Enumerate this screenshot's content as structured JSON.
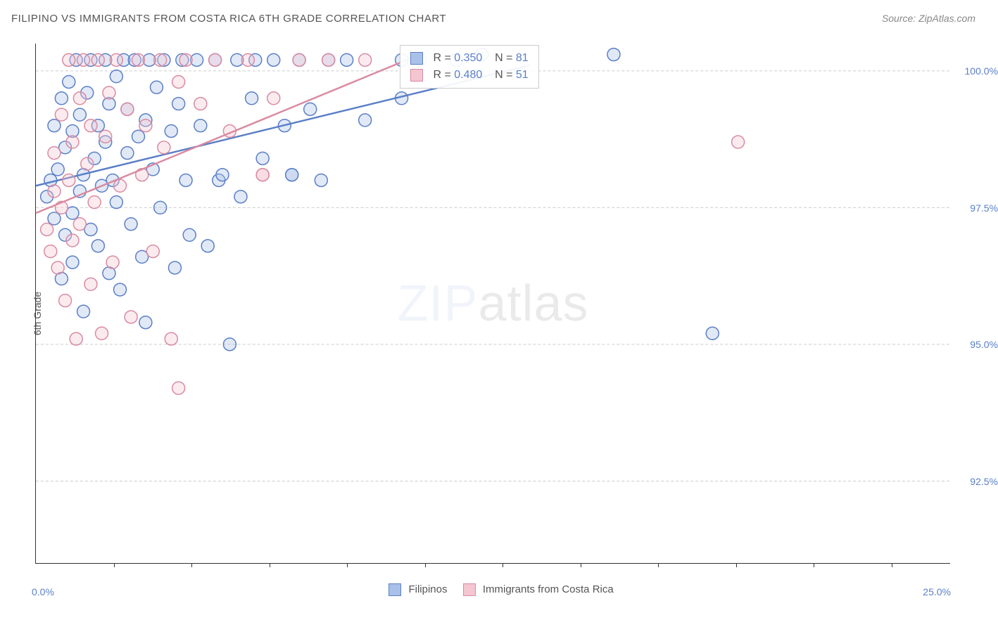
{
  "title": "FILIPINO VS IMMIGRANTS FROM COSTA RICA 6TH GRADE CORRELATION CHART",
  "source": "Source: ZipAtlas.com",
  "ylabel": "6th Grade",
  "watermark_a": "ZIP",
  "watermark_b": "atlas",
  "chart": {
    "type": "scatter",
    "background_color": "#ffffff",
    "grid_color": "#cccccc",
    "grid_dash": "4,3",
    "axis_color": "#333333",
    "xlim": [
      0.0,
      25.0
    ],
    "ylim": [
      91.0,
      100.5
    ],
    "xtick_labels": [
      "0.0%",
      "25.0%"
    ],
    "ytick_values": [
      92.5,
      95.0,
      97.5,
      100.0
    ],
    "ytick_labels": [
      "92.5%",
      "95.0%",
      "97.5%",
      "100.0%"
    ],
    "tick_marks_x_pct": [
      8.5,
      17,
      25.5,
      34,
      42.5,
      51,
      59.5,
      68,
      76.5,
      85,
      93.5
    ],
    "label_color": "#5b7fc7",
    "title_fontsize": 15,
    "label_fontsize": 14,
    "marker_radius": 9,
    "marker_stroke_width": 1.5,
    "marker_fill_opacity": 0.35,
    "line_width": 2.5
  },
  "series": [
    {
      "id": "filipinos",
      "label": "Filipinos",
      "color_stroke": "#5b7fc7",
      "color_fill": "#a9c1e8",
      "R": "0.350",
      "N": "81",
      "trend": {
        "x1": 0.0,
        "y1": 97.9,
        "x2": 13.5,
        "y2": 100.1
      },
      "points": [
        [
          0.3,
          97.7
        ],
        [
          0.4,
          98.0
        ],
        [
          0.5,
          97.3
        ],
        [
          0.5,
          99.0
        ],
        [
          0.6,
          98.2
        ],
        [
          0.7,
          96.2
        ],
        [
          0.7,
          99.5
        ],
        [
          0.8,
          97.0
        ],
        [
          0.8,
          98.6
        ],
        [
          0.9,
          99.8
        ],
        [
          1.0,
          97.4
        ],
        [
          1.0,
          98.9
        ],
        [
          1.0,
          96.5
        ],
        [
          1.1,
          100.2
        ],
        [
          1.2,
          97.8
        ],
        [
          1.2,
          99.2
        ],
        [
          1.3,
          98.1
        ],
        [
          1.3,
          95.6
        ],
        [
          1.4,
          99.6
        ],
        [
          1.5,
          97.1
        ],
        [
          1.5,
          100.2
        ],
        [
          1.6,
          98.4
        ],
        [
          1.7,
          96.8
        ],
        [
          1.7,
          99.0
        ],
        [
          1.8,
          97.9
        ],
        [
          1.9,
          100.2
        ],
        [
          1.9,
          98.7
        ],
        [
          2.0,
          99.4
        ],
        [
          2.0,
          96.3
        ],
        [
          2.1,
          98.0
        ],
        [
          2.2,
          99.9
        ],
        [
          2.2,
          97.6
        ],
        [
          2.3,
          96.0
        ],
        [
          2.4,
          100.2
        ],
        [
          2.5,
          98.5
        ],
        [
          2.5,
          99.3
        ],
        [
          2.6,
          97.2
        ],
        [
          2.7,
          100.2
        ],
        [
          2.8,
          98.8
        ],
        [
          2.9,
          96.6
        ],
        [
          3.0,
          99.1
        ],
        [
          3.0,
          95.4
        ],
        [
          3.1,
          100.2
        ],
        [
          3.2,
          98.2
        ],
        [
          3.3,
          99.7
        ],
        [
          3.4,
          97.5
        ],
        [
          3.5,
          100.2
        ],
        [
          3.7,
          98.9
        ],
        [
          3.8,
          96.4
        ],
        [
          3.9,
          99.4
        ],
        [
          4.0,
          100.2
        ],
        [
          4.1,
          98.0
        ],
        [
          4.2,
          97.0
        ],
        [
          4.4,
          100.2
        ],
        [
          4.5,
          99.0
        ],
        [
          4.7,
          96.8
        ],
        [
          4.9,
          100.2
        ],
        [
          5.0,
          98.0
        ],
        [
          5.1,
          98.1
        ],
        [
          5.3,
          95.0
        ],
        [
          5.5,
          100.2
        ],
        [
          5.6,
          97.7
        ],
        [
          5.9,
          99.5
        ],
        [
          6.0,
          100.2
        ],
        [
          6.2,
          98.4
        ],
        [
          6.5,
          100.2
        ],
        [
          6.8,
          99.0
        ],
        [
          7.0,
          98.1
        ],
        [
          7.0,
          98.1
        ],
        [
          7.2,
          100.2
        ],
        [
          7.5,
          99.3
        ],
        [
          7.8,
          98.0
        ],
        [
          8.0,
          100.2
        ],
        [
          8.5,
          100.2
        ],
        [
          9.0,
          99.1
        ],
        [
          10.0,
          100.2
        ],
        [
          10.0,
          99.5
        ],
        [
          11.5,
          100.2
        ],
        [
          12.2,
          100.3
        ],
        [
          15.8,
          100.3
        ],
        [
          18.5,
          95.2
        ]
      ]
    },
    {
      "id": "costa_rica",
      "label": "Immigrants from Costa Rica",
      "color_stroke": "#d98ba0",
      "color_fill": "#f4c6d1",
      "R": "0.480",
      "N": "51",
      "trend": {
        "x1": 0.0,
        "y1": 97.4,
        "x2": 10.5,
        "y2": 100.3
      },
      "points": [
        [
          0.3,
          97.1
        ],
        [
          0.4,
          96.7
        ],
        [
          0.5,
          97.8
        ],
        [
          0.5,
          98.5
        ],
        [
          0.6,
          96.4
        ],
        [
          0.7,
          99.2
        ],
        [
          0.7,
          97.5
        ],
        [
          0.8,
          95.8
        ],
        [
          0.9,
          98.0
        ],
        [
          0.9,
          100.2
        ],
        [
          1.0,
          96.9
        ],
        [
          1.0,
          98.7
        ],
        [
          1.1,
          95.1
        ],
        [
          1.2,
          99.5
        ],
        [
          1.2,
          97.2
        ],
        [
          1.3,
          100.2
        ],
        [
          1.4,
          98.3
        ],
        [
          1.5,
          96.1
        ],
        [
          1.5,
          99.0
        ],
        [
          1.6,
          97.6
        ],
        [
          1.7,
          100.2
        ],
        [
          1.8,
          95.2
        ],
        [
          1.9,
          98.8
        ],
        [
          2.0,
          99.6
        ],
        [
          2.1,
          96.5
        ],
        [
          2.2,
          100.2
        ],
        [
          2.3,
          97.9
        ],
        [
          2.5,
          99.3
        ],
        [
          2.6,
          95.5
        ],
        [
          2.8,
          100.2
        ],
        [
          2.9,
          98.1
        ],
        [
          3.0,
          99.0
        ],
        [
          3.2,
          96.7
        ],
        [
          3.4,
          100.2
        ],
        [
          3.5,
          98.6
        ],
        [
          3.7,
          95.1
        ],
        [
          3.9,
          99.8
        ],
        [
          3.9,
          94.2
        ],
        [
          4.1,
          100.2
        ],
        [
          4.5,
          99.4
        ],
        [
          4.9,
          100.2
        ],
        [
          5.3,
          98.9
        ],
        [
          5.8,
          100.2
        ],
        [
          6.2,
          98.1
        ],
        [
          6.2,
          98.1
        ],
        [
          6.5,
          99.5
        ],
        [
          7.2,
          100.2
        ],
        [
          8.0,
          100.2
        ],
        [
          9.0,
          100.2
        ],
        [
          10.5,
          100.2
        ],
        [
          19.2,
          98.7
        ]
      ]
    }
  ],
  "stats_labels": {
    "R": "R =",
    "N": "N ="
  },
  "legend": {
    "swatch_size": 18
  }
}
